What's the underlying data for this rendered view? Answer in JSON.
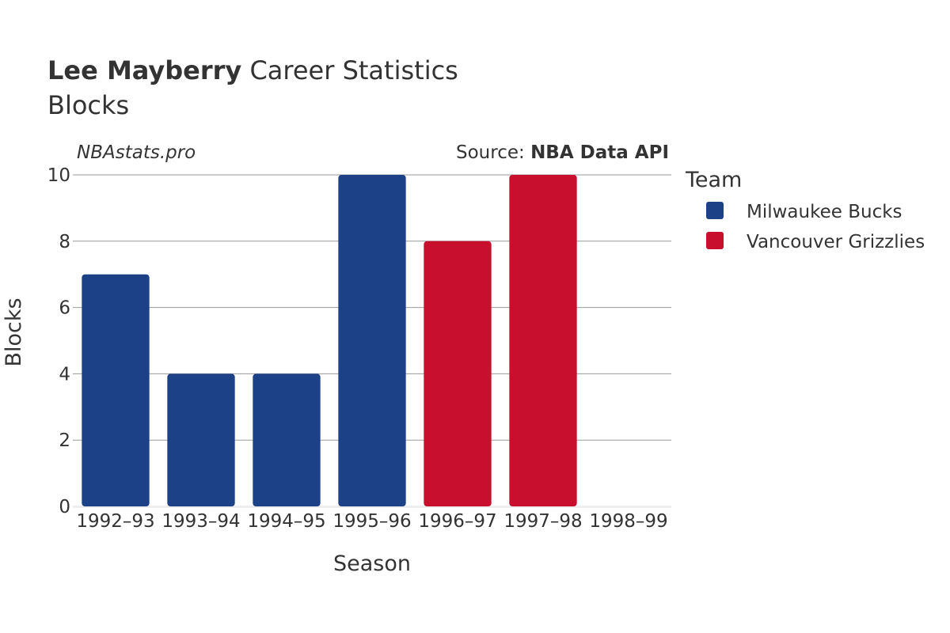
{
  "header": {
    "title_bold": "Lee Mayberry",
    "title_rest": " Career Statistics",
    "subtitle": "Blocks",
    "watermark": "NBAstats.pro",
    "source_prefix": "Source: ",
    "source_name": "NBA Data API"
  },
  "legend": {
    "title": "Team"
  },
  "colors": {
    "Milwaukee Bucks": "#1c4187",
    "Vancouver Grizzlies": "#c8102e",
    "grid": "#999999",
    "text": "#333333"
  },
  "chart_data": {
    "type": "bar",
    "xlabel": "Season",
    "ylabel": "Blocks",
    "ylim": [
      0,
      10
    ],
    "yticks": [
      0,
      2,
      4,
      6,
      8,
      10
    ],
    "grid": true,
    "legend_position": "right",
    "categories": [
      "1992–93",
      "1993–94",
      "1994–95",
      "1995–96",
      "1996–97",
      "1997–98",
      "1998–99"
    ],
    "series": [
      {
        "name": "Milwaukee Bucks",
        "values": [
          7,
          4,
          4,
          10,
          null,
          null,
          null
        ]
      },
      {
        "name": "Vancouver Grizzlies",
        "values": [
          null,
          null,
          null,
          null,
          8,
          10,
          0
        ]
      }
    ]
  }
}
